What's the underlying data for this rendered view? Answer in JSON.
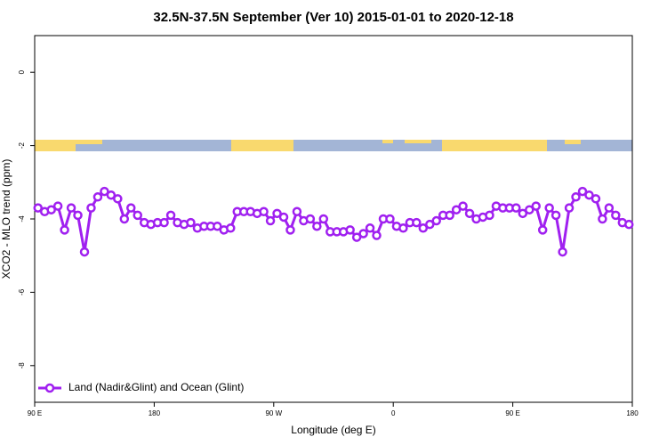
{
  "chart_data": {
    "type": "line",
    "title": "32.5N-37.5N September (Ver 10)   2015-01-01 to 2020-12-18",
    "x_label": "Longitude (deg E)",
    "y_label": "XCO2 - MLO trend (ppm)",
    "x": [
      92.5,
      97.5,
      102.5,
      107.5,
      112.5,
      117.5,
      122.5,
      127.5,
      132.5,
      137.5,
      142.5,
      147.5,
      152.5,
      157.5,
      162.5,
      167.5,
      172.5,
      177.5,
      182.5,
      187.5,
      192.5,
      197.5,
      202.5,
      207.5,
      212.5,
      217.5,
      222.5,
      227.5,
      232.5,
      237.5,
      242.5,
      247.5,
      252.5,
      257.5,
      262.5,
      267.5,
      272.5,
      277.5,
      282.5,
      287.5,
      292.5,
      297.5,
      302.5,
      307.5,
      312.5,
      317.5,
      322.5,
      327.5,
      332.5,
      337.5,
      342.5,
      347.5,
      352.5,
      357.5,
      362.5,
      367.5,
      372.5,
      377.5,
      382.5,
      387.5,
      392.5,
      397.5,
      402.5,
      407.5,
      412.5,
      417.5,
      422.5,
      427.5,
      432.5,
      437.5,
      442.5,
      447.5,
      452.5,
      457.5,
      462.5,
      467.5,
      472.5,
      477.5,
      482.5,
      487.5,
      492.5,
      497.5,
      502.5,
      507.5,
      512.5,
      517.5,
      522.5,
      527.5,
      532.5,
      537.5
    ],
    "series": [
      {
        "name": "Land (Nadir&Glint) and Ocean (Glint)",
        "color": "#a020f0",
        "values": [
          -3.7,
          -3.8,
          -3.75,
          -3.65,
          -4.3,
          -3.7,
          -3.9,
          -4.9,
          -3.7,
          -3.4,
          -3.25,
          -3.35,
          -3.45,
          -4.0,
          -3.7,
          -3.9,
          -4.1,
          -4.15,
          -4.1,
          -4.1,
          -3.9,
          -4.1,
          -4.15,
          -4.1,
          -4.25,
          -4.2,
          -4.2,
          -4.2,
          -4.3,
          -4.25,
          -3.8,
          -3.8,
          -3.8,
          -3.85,
          -3.8,
          -4.05,
          -3.85,
          -3.95,
          -4.3,
          -3.8,
          -4.05,
          -4.0,
          -4.2,
          -4.0,
          -4.35,
          -4.35,
          -4.35,
          -4.3,
          -4.5,
          -4.4,
          -4.25,
          -4.45,
          -4.0,
          -4.0,
          -4.2,
          -4.25,
          -4.1,
          -4.1,
          -4.25,
          -4.15,
          -4.05,
          -3.9,
          -3.9,
          -3.75,
          -3.65,
          -3.85,
          -4.0,
          -3.95,
          -3.9,
          -3.65,
          -3.7,
          -3.7,
          -3.7,
          -3.85,
          -3.75,
          -3.65,
          -4.3,
          -3.7,
          -3.9,
          -4.9,
          -3.7,
          -3.4,
          -3.25,
          -3.35,
          -3.45,
          -4.0,
          -3.7,
          -3.9,
          -4.1,
          -4.15
        ]
      }
    ],
    "xlim": [
      90,
      540
    ],
    "xticks": [
      {
        "value": 90,
        "label": "90 E"
      },
      {
        "value": 180,
        "label": "180"
      },
      {
        "value": 270,
        "label": "90 W"
      },
      {
        "value": 360,
        "label": "0"
      },
      {
        "value": 450,
        "label": "90 E"
      },
      {
        "value": 540,
        "label": "180"
      }
    ],
    "ylim": [
      -9,
      1
    ],
    "yticks": [
      0,
      -2,
      -4,
      -6,
      -8
    ],
    "legend": "bottom-left",
    "grid": false
  }
}
